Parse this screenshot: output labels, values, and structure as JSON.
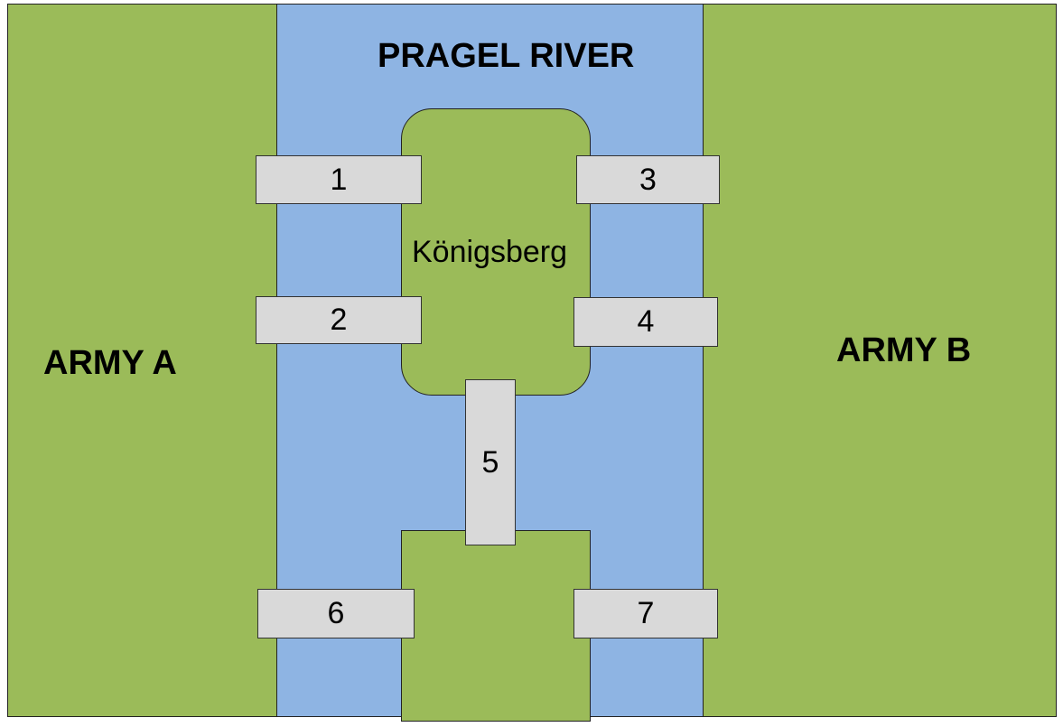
{
  "river": {
    "name": "PRAGEL RIVER",
    "color": "#8eb4e3"
  },
  "land_color": "#9bbb59",
  "bridge_color": "#d9d9d9",
  "armies": {
    "a": "ARMY A",
    "b": "ARMY B"
  },
  "island": {
    "name": "Königsberg"
  },
  "bridges": [
    "1",
    "2",
    "3",
    "4",
    "5",
    "6",
    "7"
  ]
}
